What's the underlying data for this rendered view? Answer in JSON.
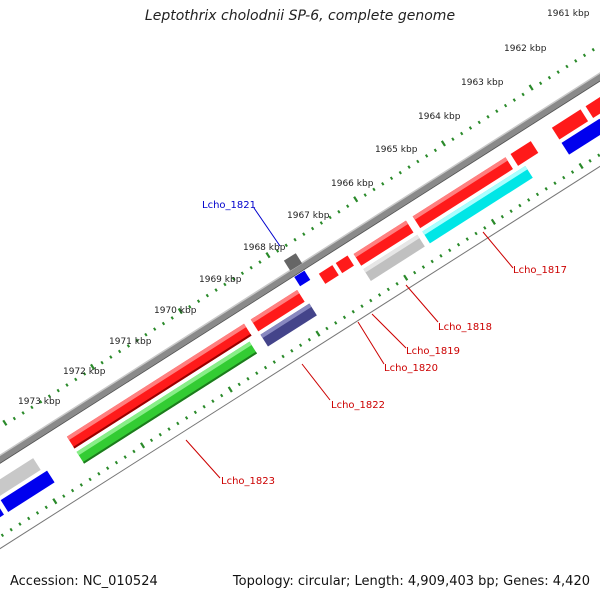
{
  "title": "Leptothrix cholodnii SP-6, complete genome",
  "footer": {
    "accession": "Accession: NC_010524",
    "summary": "Topology: circular; Length: 4,909,403 bp; Genes: 4,420"
  },
  "ruler_labels": [
    "1961 kbp",
    "1962 kbp",
    "1963 kbp",
    "1964 kbp",
    "1965 kbp",
    "1966 kbp",
    "1967 kbp",
    "1968 kbp",
    "1969 kbp",
    "1970 kbp",
    "1971 kbp",
    "1972 kbp",
    "1973 kbp"
  ],
  "gene_labels": {
    "lcho_1817": "Lcho_1817",
    "lcho_1818": "Lcho_1818",
    "lcho_1819": "Lcho_1819",
    "lcho_1820": "Lcho_1820",
    "lcho_1821": "Lcho_1821",
    "lcho_1822": "Lcho_1822",
    "lcho_1823": "Lcho_1823"
  },
  "colors": {
    "red": "#ff0000",
    "blue": "#0000ff",
    "green": "#33cc33",
    "cyan": "#00ffff",
    "gray": "#c0c0c0",
    "dark_gray": "#606060",
    "navy": "#44448a",
    "ruler_green": "#2a8a2a",
    "label_red": "#cc0000",
    "label_blue": "#0000cc"
  }
}
